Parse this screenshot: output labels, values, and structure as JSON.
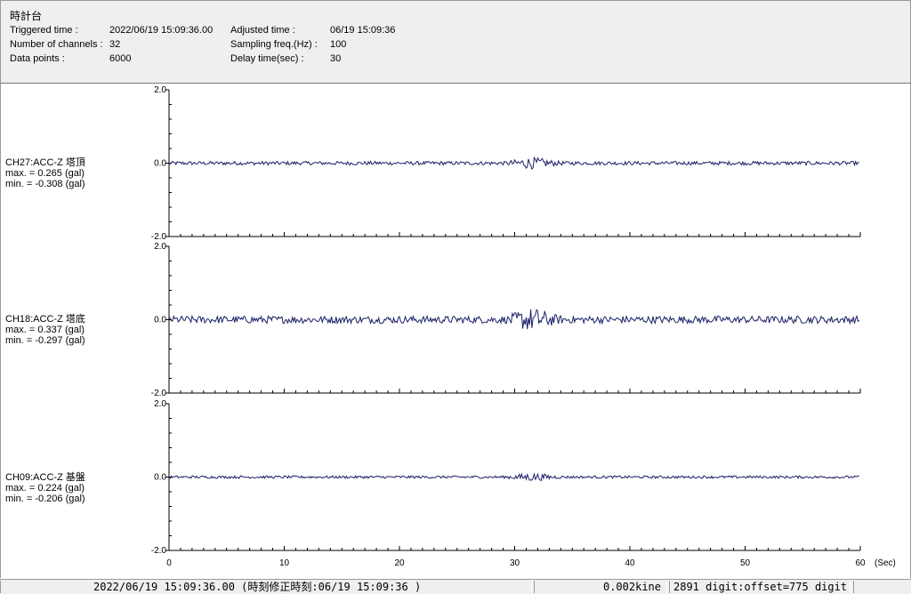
{
  "header": {
    "station_name": "時計台",
    "triggered_time_label": "Triggered time :",
    "triggered_time_value": "2022/06/19 15:09:36.00",
    "num_channels_label": "Number of channels :",
    "num_channels_value": "32",
    "data_points_label": "Data points :",
    "data_points_value": "6000",
    "adjusted_time_label": "Adjusted time :",
    "adjusted_time_value": "06/19 15:09:36",
    "sampling_freq_label": "Sampling freq.(Hz) :",
    "sampling_freq_value": "100",
    "delay_time_label": "Delay time(sec) :",
    "delay_time_value": "30"
  },
  "channels": [
    {
      "name": "CH27:ACC-Z 塔頂",
      "max_text": "max. = 0.265 (gal)",
      "min_text": "min. = -0.308 (gal)",
      "max": 0.265,
      "min": -0.308,
      "amp": 0.05
    },
    {
      "name": "CH18:ACC-Z 塔底",
      "max_text": "max. = 0.337 (gal)",
      "min_text": "min. = -0.297 (gal)",
      "max": 0.337,
      "min": -0.297,
      "amp": 0.1
    },
    {
      "name": "CH09:ACC-Z 基盤",
      "max_text": "max. = 0.224 (gal)",
      "min_text": "min. = -0.206 (gal)",
      "max": 0.224,
      "min": -0.206,
      "amp": 0.035
    }
  ],
  "chart_data": {
    "type": "line",
    "ylim": [
      -2.0,
      2.0
    ],
    "y_tick_labels": [
      "2.0",
      "0.0",
      "-2.0"
    ],
    "xlim": [
      0,
      60
    ],
    "x_tick_labels": [
      "0",
      "10",
      "20",
      "30",
      "40",
      "50",
      "60"
    ],
    "x_unit": "(Sec)",
    "series_color": "#1a1f66"
  },
  "statusbar": {
    "time_text": "2022/06/19 15:09:36.00  (時刻修正時刻:06/19 15:09:36  )",
    "kine_text": "0.002kine",
    "digit_text": "2891 digit:offset=775 digit"
  }
}
